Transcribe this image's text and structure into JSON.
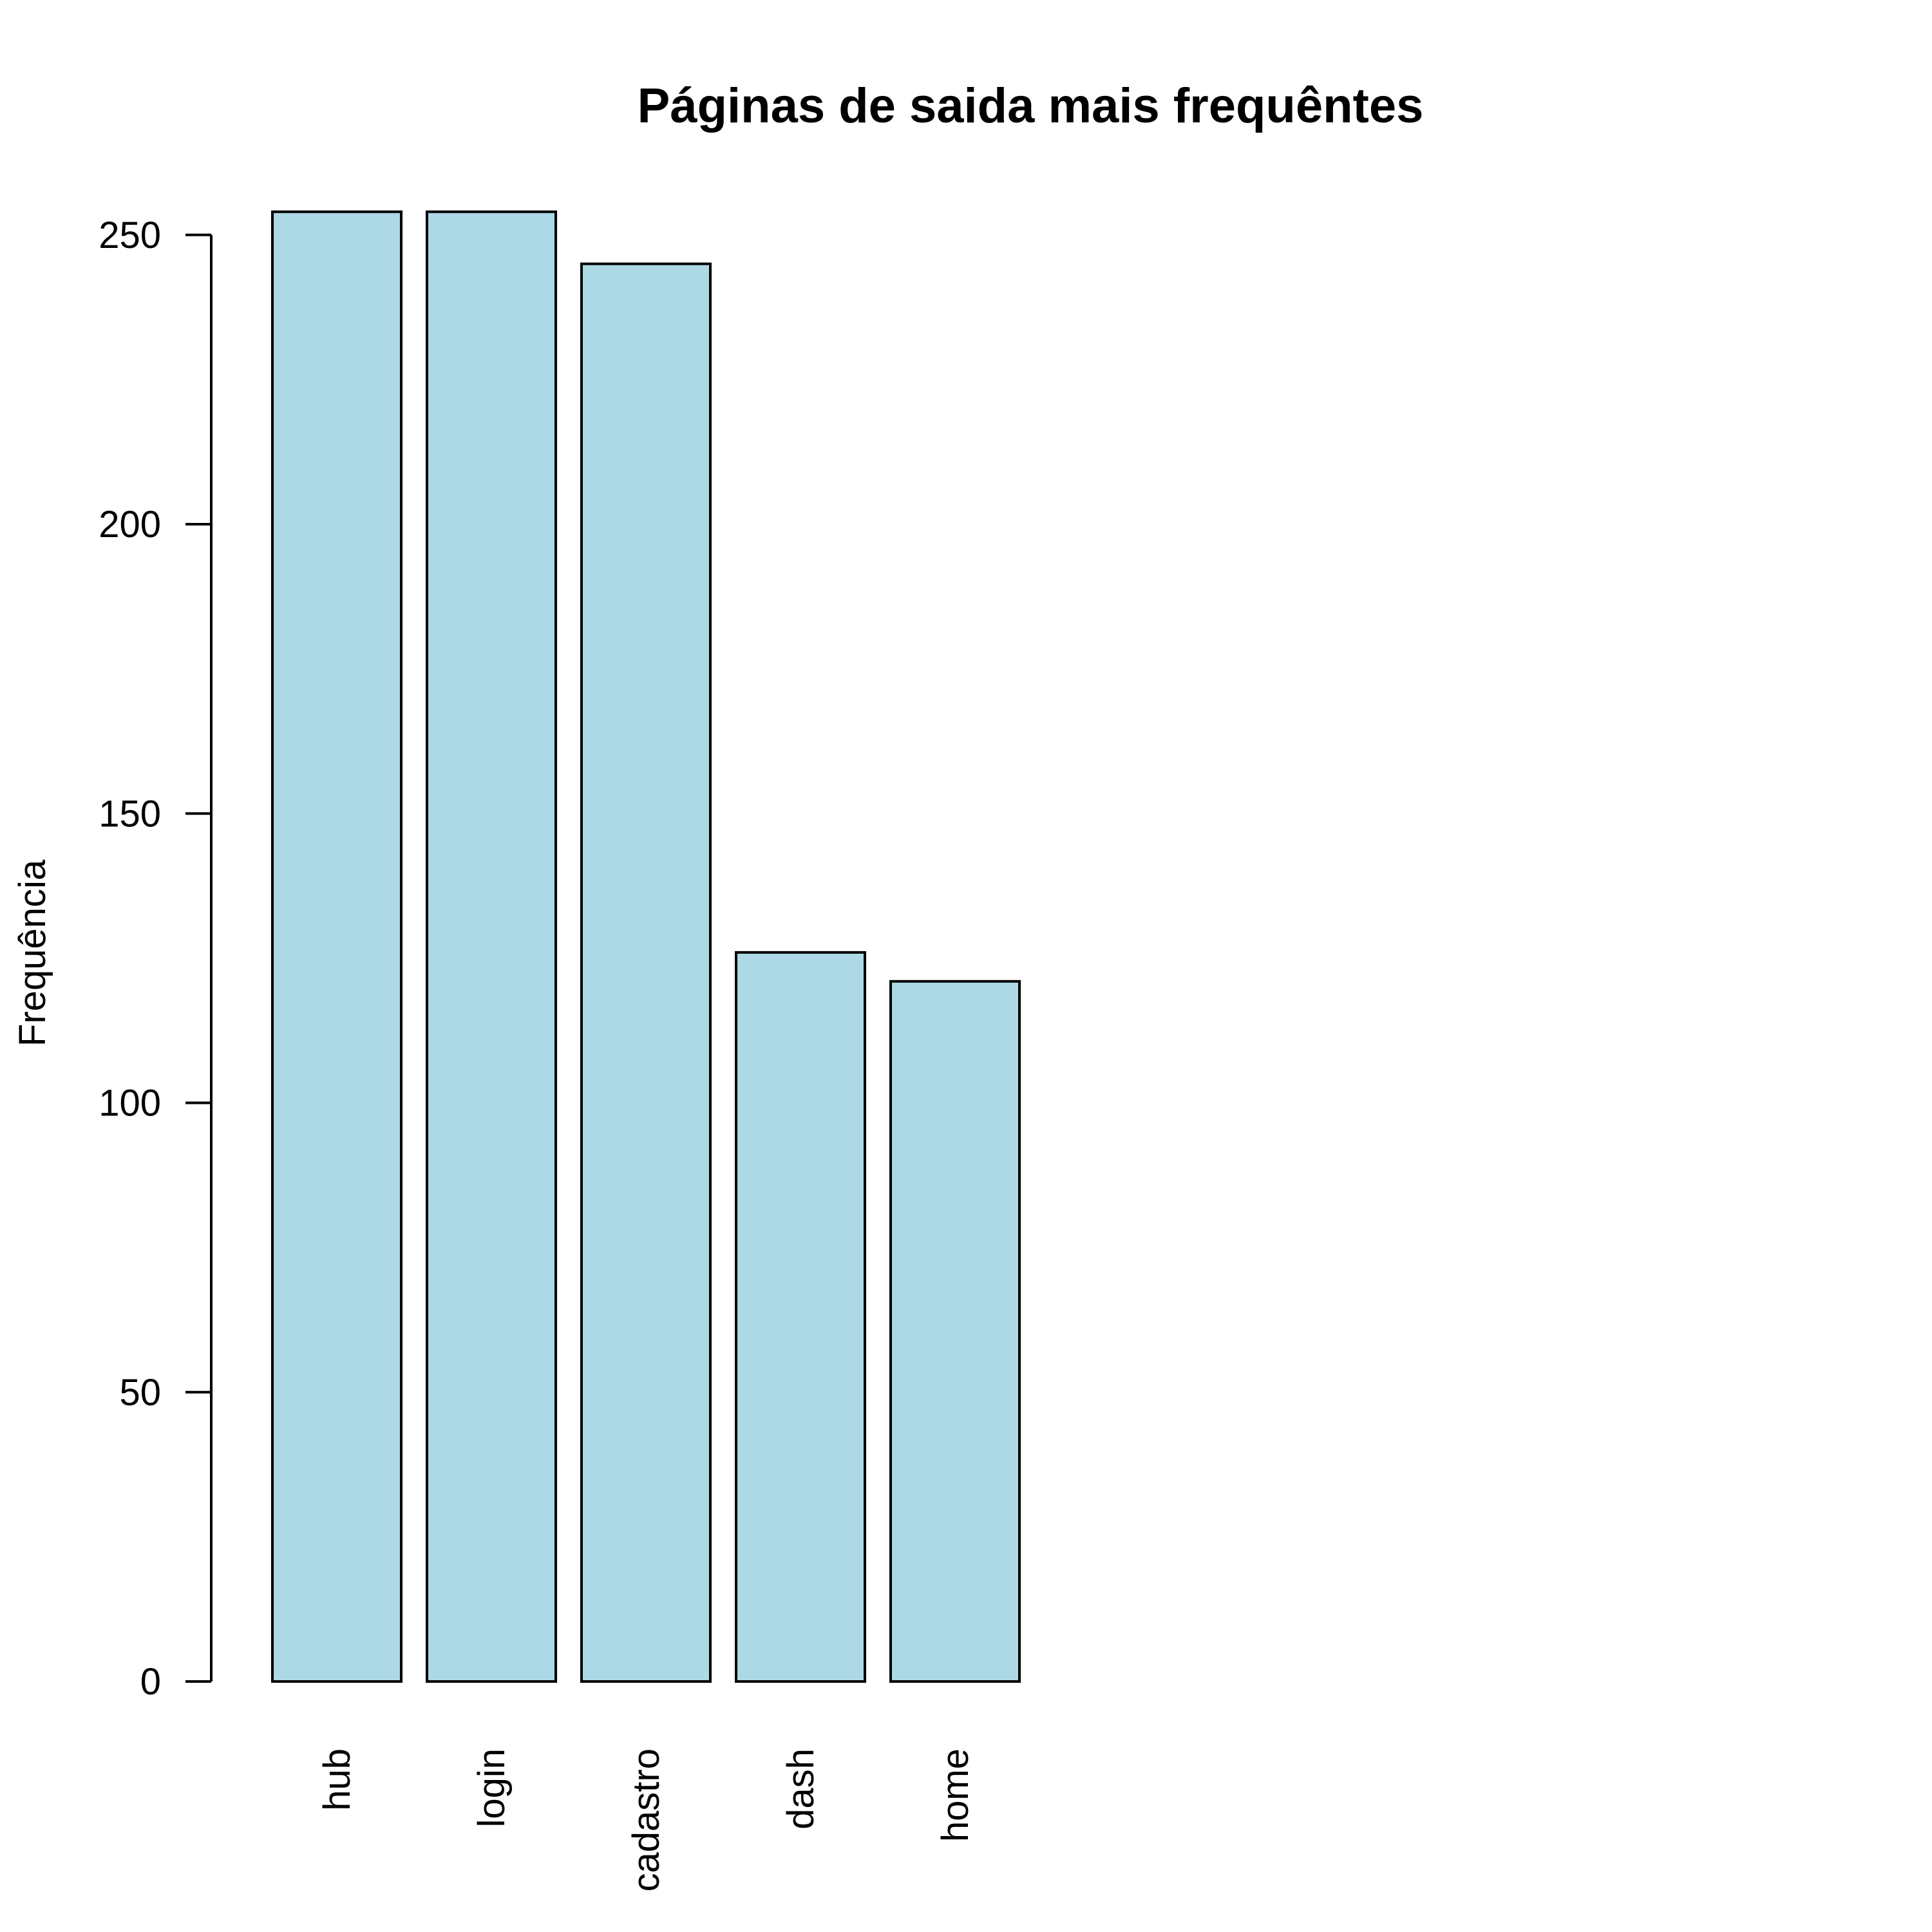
{
  "chart_data": {
    "type": "bar",
    "title": "Páginas de saida mais frequêntes",
    "xlabel": "",
    "ylabel": "Frequência",
    "categories": [
      "hub",
      "login",
      "cadastro",
      "dash",
      "home"
    ],
    "values": [
      254,
      254,
      245,
      126,
      121
    ],
    "ylim": [
      0,
      250
    ],
    "yticks": [
      "0",
      "50",
      "100",
      "150",
      "200",
      "250"
    ],
    "grid": false,
    "legend": "none",
    "bar_color": "#ADD8E6",
    "bar_border_color": "#000000",
    "category_label_orientation": "vertical"
  }
}
